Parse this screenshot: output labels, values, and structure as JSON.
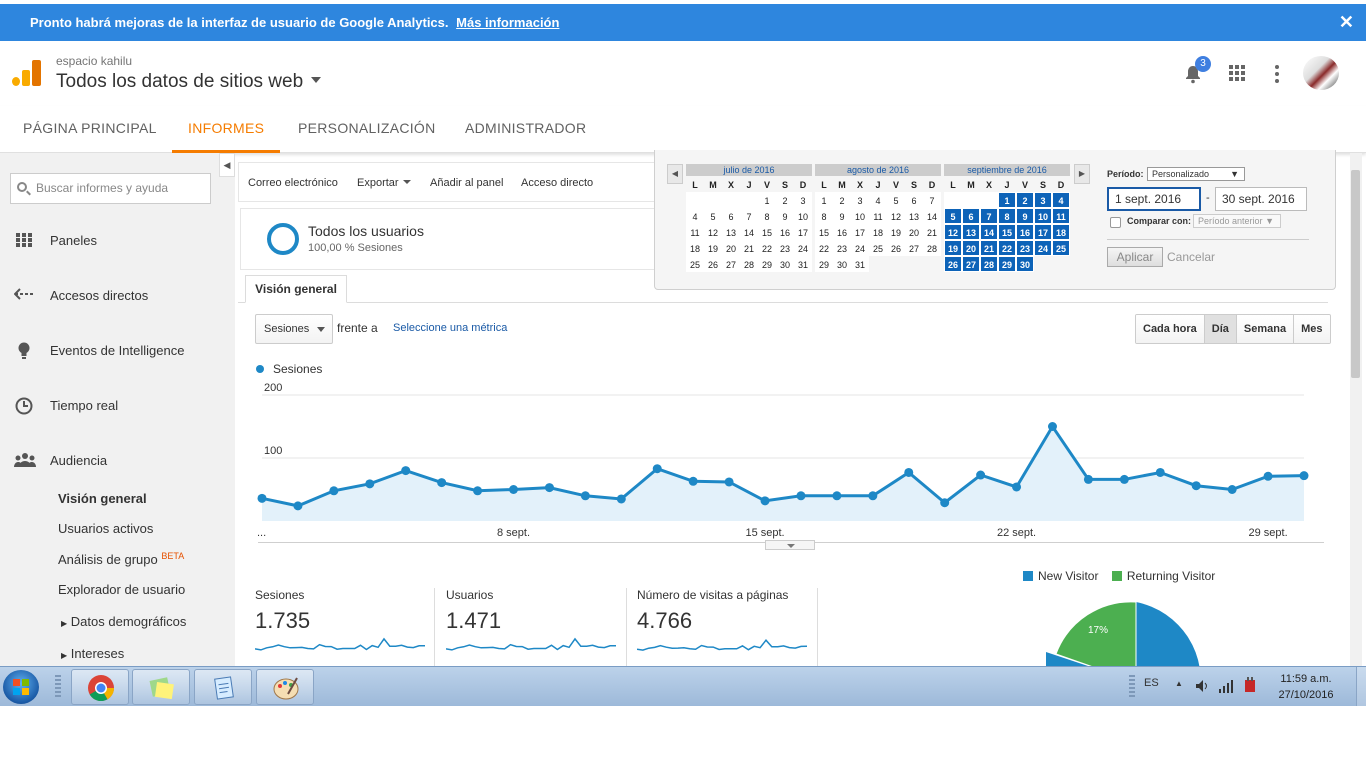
{
  "banner": {
    "text": "Pronto habrá mejoras de la interfaz de usuario de Google Analytics.",
    "link": "Más información",
    "close": "✕"
  },
  "header": {
    "account": "espacio kahilu",
    "property": "Todos los datos de sitios web",
    "notifications": "3",
    "icons": [
      "analytics-logo-icon",
      "bell-icon",
      "apps-grid-icon",
      "more-vert-icon",
      "avatar"
    ]
  },
  "nav": {
    "tabs": [
      "PÁGINA PRINCIPAL",
      "INFORMES",
      "PERSONALIZACIÓN",
      "ADMINISTRADOR"
    ],
    "active": "INFORMES"
  },
  "sidebar": {
    "search_placeholder": "Buscar informes y ayuda",
    "items": [
      {
        "label": "Paneles",
        "icon": "dashboard-icon"
      },
      {
        "label": "Accesos directos",
        "icon": "shortcut-arrow-icon"
      },
      {
        "label": "Eventos de Intelligence",
        "icon": "lightbulb-icon"
      },
      {
        "label": "Tiempo real",
        "icon": "clock-icon"
      },
      {
        "label": "Audiencia",
        "icon": "people-icon"
      }
    ],
    "sub_items": [
      "Visión general",
      "Usuarios activos",
      "Análisis de grupo",
      "Explorador de usuario",
      "Datos demográficos",
      "Intereses"
    ],
    "beta": "BETA"
  },
  "actions": {
    "email": "Correo electrónico",
    "export": "Exportar",
    "add_dashboard": "Añadir al panel",
    "shortcut": "Acceso directo"
  },
  "segment": {
    "name": "Todos los usuarios",
    "sub": "100,00 % Sesiones"
  },
  "tab": {
    "overview": "Visión general"
  },
  "chart_controls": {
    "metric": "Sesiones",
    "vs": "frente a",
    "select_metric": "Seleccione una métrica",
    "granularity": [
      "Cada hora",
      "Día",
      "Semana",
      "Mes"
    ],
    "active_granularity": "Día"
  },
  "chart_data": {
    "type": "area",
    "series": [
      {
        "name": "Sesiones",
        "values": [
          36,
          24,
          48,
          59,
          80,
          61,
          48,
          50,
          53,
          40,
          35,
          83,
          63,
          62,
          32,
          40,
          40,
          40,
          77,
          29,
          73,
          54,
          150,
          66,
          66,
          77,
          56,
          50,
          71,
          72
        ]
      }
    ],
    "x": [
      "1",
      "2",
      "3",
      "4",
      "5",
      "6",
      "7",
      "8",
      "9",
      "10",
      "11",
      "12",
      "13",
      "14",
      "15",
      "16",
      "17",
      "18",
      "19",
      "20",
      "21",
      "22",
      "23",
      "24",
      "25",
      "26",
      "27",
      "28",
      "29",
      "30"
    ],
    "xtick_labels": [
      "...",
      "8 sept.",
      "15 sept.",
      "22 sept.",
      "29 sept."
    ],
    "ytick_labels": [
      "100",
      "200"
    ],
    "ylim": [
      0,
      200
    ],
    "color": "#1e88c6"
  },
  "metrics": [
    {
      "label": "Sesiones",
      "value": "1.735"
    },
    {
      "label": "Usuarios",
      "value": "1.471"
    },
    {
      "label": "Número de visitas a páginas",
      "value": "4.766"
    }
  ],
  "pie": {
    "legend": [
      {
        "label": "New Visitor",
        "color": "#1e88c6"
      },
      {
        "label": "Returning Visitor",
        "color": "#4caf50"
      }
    ],
    "returning_label": "17%",
    "returning_fraction": 0.17
  },
  "datepicker": {
    "months": [
      {
        "title": "julio de 2016",
        "offset": 4,
        "days": 31,
        "selected": []
      },
      {
        "title": "agosto de 2016",
        "offset": 0,
        "days": 31,
        "selected": []
      },
      {
        "title": "septiembre de 2016",
        "offset": 3,
        "days": 30,
        "selected": "all"
      }
    ],
    "dow": [
      "L",
      "M",
      "X",
      "J",
      "V",
      "S",
      "D"
    ],
    "period_label": "Período:",
    "period_value": "Personalizado",
    "start": "1 sept. 2016",
    "dash": "-",
    "end": "30 sept. 2016",
    "compare_label": "Comparar con:",
    "compare_value": "Período anterior",
    "apply": "Aplicar",
    "cancel": "Cancelar"
  },
  "taskbar": {
    "lang": "ES",
    "time": "11:59 a.m.",
    "date": "27/10/2016",
    "apps": [
      "chrome-icon",
      "sticky-notes-icon",
      "notepad-icon",
      "paint-icon"
    ]
  }
}
